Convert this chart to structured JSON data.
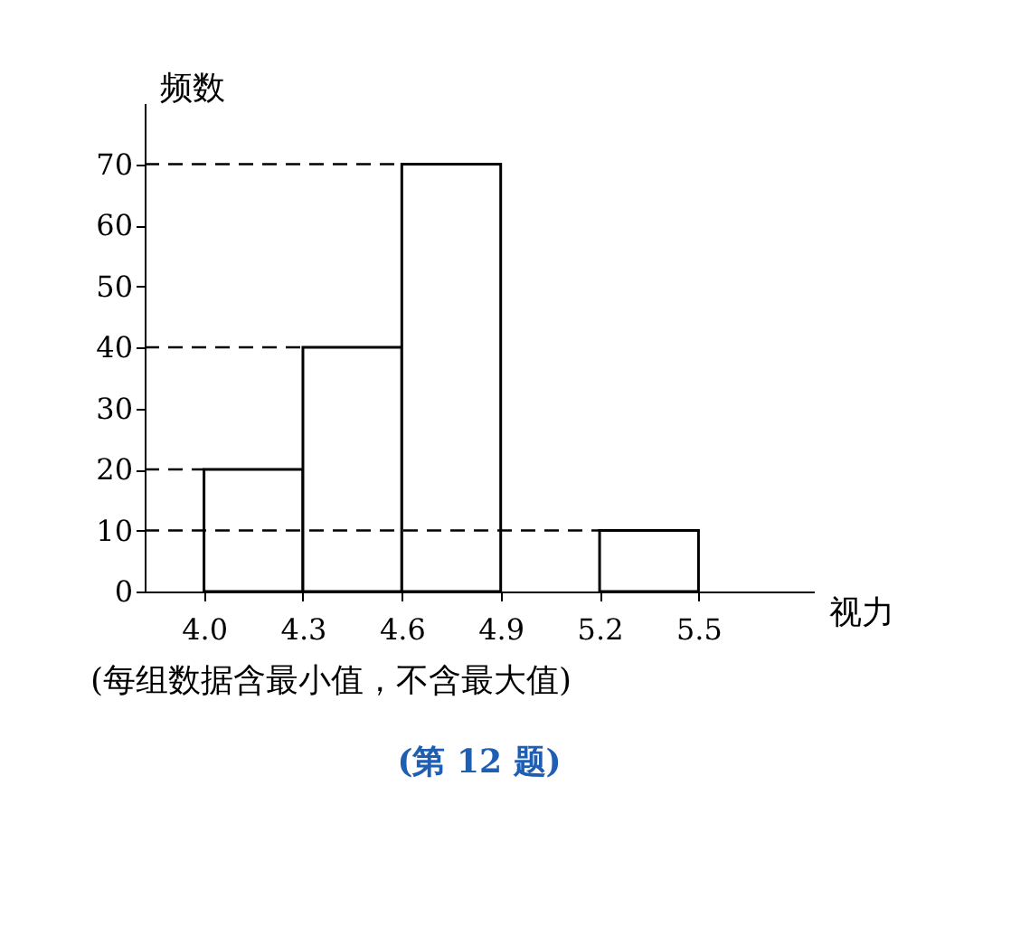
{
  "chart_data": {
    "type": "histogram",
    "bins": [
      4.0,
      4.3,
      4.6,
      4.9,
      5.2,
      5.5
    ],
    "values": [
      20,
      40,
      70,
      null,
      10
    ],
    "color": "#ffffff",
    "xlim": [
      3.82,
      5.85
    ],
    "xticks": [
      {
        "value": 4.0,
        "label": "4.0"
      },
      {
        "value": 4.3,
        "label": "4.3"
      },
      {
        "value": 4.6,
        "label": "4.6"
      },
      {
        "value": 4.9,
        "label": "4.9"
      },
      {
        "value": 5.2,
        "label": "5.2"
      },
      {
        "value": 5.5,
        "label": "5.5"
      }
    ],
    "ylim": [
      0,
      80
    ],
    "yticks": [
      0,
      10,
      20,
      30,
      40,
      50,
      60,
      70
    ],
    "xlabel": "视力",
    "ylabel": "频数",
    "ref_lines": [
      {
        "axis": "y",
        "value": 10,
        "line_style": "dashed"
      },
      {
        "axis": "y",
        "value": 20,
        "line_style": "dashed"
      },
      {
        "axis": "y",
        "value": 40,
        "line_style": "dashed"
      },
      {
        "axis": "y",
        "value": 70,
        "line_style": "dashed"
      }
    ],
    "annotations": [
      "(每组数据含最小值，不含最大值)",
      "(第 12 题)"
    ],
    "grid": false
  }
}
